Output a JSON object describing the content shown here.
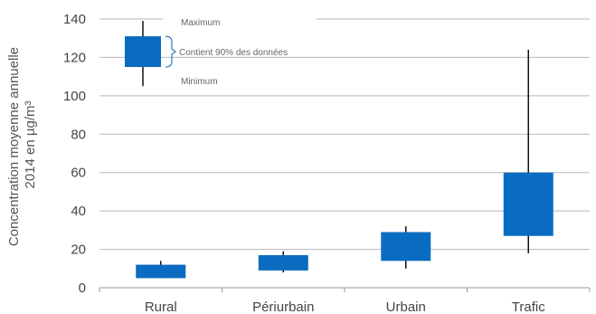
{
  "chart_data": {
    "type": "boxplot",
    "ylabel_line1": "Concentration moyenne annuelle",
    "ylabel_line2": "2014 en µg/m³",
    "xlabel": "",
    "ylim": [
      0,
      140
    ],
    "yticks": [
      0,
      20,
      40,
      60,
      80,
      100,
      120,
      140
    ],
    "grid": true,
    "box_color": "#0a6cc1",
    "categories": [
      "Rural",
      "Périurbain",
      "Urbain",
      "Trafic"
    ],
    "series": [
      {
        "min": 5,
        "q_low": 5,
        "q_high": 12,
        "max": 14
      },
      {
        "min": 8,
        "q_low": 9,
        "q_high": 17,
        "max": 19
      },
      {
        "min": 10,
        "q_low": 14,
        "q_high": 29,
        "max": 32
      },
      {
        "min": 18,
        "q_low": 27,
        "q_high": 60,
        "max": 124
      }
    ],
    "legend": {
      "sample": {
        "min": 105,
        "q_low": 115,
        "q_high": 131,
        "max": 139
      },
      "label_max": "Maximum",
      "label_box": "Contient 90% des données",
      "label_min": "Minimum"
    }
  }
}
